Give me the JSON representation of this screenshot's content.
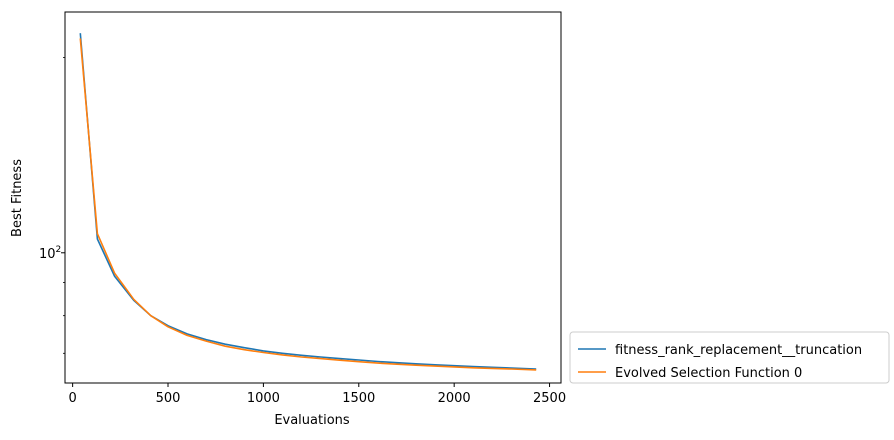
{
  "chart_data": {
    "type": "line",
    "title": "",
    "xlabel": "Evaluations",
    "ylabel": "Best Fitness",
    "xlim": [
      -40,
      2560
    ],
    "xticks": [
      0,
      500,
      1000,
      1500,
      2000,
      2500
    ],
    "xtick_labels": [
      "0",
      "500",
      "1000",
      "1500",
      "2000",
      "2500"
    ],
    "yscale": "log",
    "ylim": [
      63,
      235
    ],
    "yticks": [
      100
    ],
    "ytick_labels": [
      "10",
      "2"
    ],
    "grid": false,
    "legend_position": "outside-bottom-right",
    "series": [
      {
        "name": "fitness_rank_replacement__truncation",
        "color": "#1f77b4",
        "x": [
          40,
          130,
          220,
          320,
          410,
          500,
          600,
          700,
          800,
          900,
          1000,
          1100,
          1200,
          1300,
          1400,
          1500,
          1600,
          1700,
          1800,
          1900,
          2000,
          2100,
          2200,
          2300,
          2430
        ],
        "y": [
          218,
          105,
          92,
          84.5,
          80.0,
          77.2,
          75.0,
          73.5,
          72.3,
          71.4,
          70.6,
          70.0,
          69.5,
          69.1,
          68.7,
          68.35,
          68.0,
          67.7,
          67.45,
          67.2,
          67.0,
          66.8,
          66.6,
          66.45,
          66.2
        ]
      },
      {
        "name": "Evolved Selection Function 0",
        "color": "#ff7f0e",
        "x": [
          40,
          130,
          220,
          320,
          410,
          500,
          600,
          700,
          800,
          900,
          1000,
          1100,
          1200,
          1300,
          1400,
          1500,
          1600,
          1700,
          1800,
          1900,
          2000,
          2100,
          2200,
          2300,
          2430
        ],
        "y": [
          214,
          107,
          93,
          84.8,
          80.0,
          76.9,
          74.6,
          73.1,
          71.8,
          70.9,
          70.2,
          69.6,
          69.1,
          68.7,
          68.3,
          67.95,
          67.6,
          67.35,
          67.1,
          66.9,
          66.7,
          66.5,
          66.35,
          66.2,
          66.0
        ]
      }
    ]
  }
}
